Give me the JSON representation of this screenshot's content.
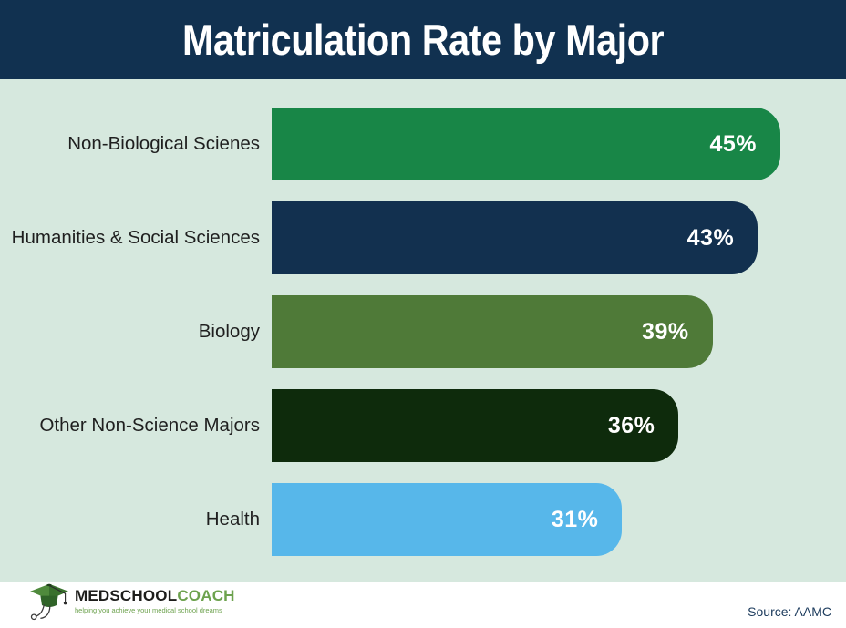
{
  "title": "Matriculation Rate by Major",
  "chart_data": {
    "type": "bar",
    "orientation": "horizontal",
    "title": "Matriculation Rate by Major",
    "categories": [
      "Non-Biological Scienes",
      "Humanities & Social Sciences",
      "Biology",
      "Other Non-Science Majors",
      "Health"
    ],
    "values": [
      45,
      43,
      39,
      36,
      31
    ],
    "value_labels": [
      "45%",
      "43%",
      "39%",
      "36%",
      "31%"
    ],
    "bar_colors": [
      "#188647",
      "#12304f",
      "#4f7a38",
      "#0e2b0c",
      "#57b7ea"
    ],
    "xlim": [
      0,
      50
    ],
    "grid": false,
    "legend": false
  },
  "colors": {
    "header_bg": "#113150",
    "chart_bg": "#d6e8de",
    "footer_bg": "#ffffff",
    "title_text": "#ffffff",
    "label_text": "#1f1f1f",
    "value_text": "#ffffff",
    "source_text": "#1b3a5c",
    "logo_green": "#6da24e"
  },
  "footer": {
    "logo_primary": "MEDSCHOOL",
    "logo_secondary": "COACH",
    "logo_tagline": "helping you achieve your medical school dreams",
    "source": "Source: AAMC"
  }
}
